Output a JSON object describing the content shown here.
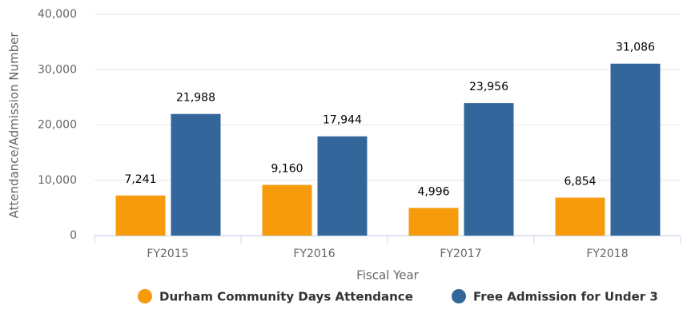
{
  "chart_data": {
    "type": "bar",
    "x_label": "Fiscal Year",
    "y_label": "Attendance/Admission Number",
    "categories": [
      "FY2015",
      "FY2016",
      "FY2017",
      "FY2018"
    ],
    "series": [
      {
        "name": "Durham Community Days Attendance",
        "color": "#f59b0c",
        "values": [
          7241,
          9160,
          4996,
          6854
        ],
        "value_labels": [
          "7,241",
          "9,160",
          "4,996",
          "6,854"
        ]
      },
      {
        "name": "Free Admission for Under 3",
        "color": "#33669a",
        "values": [
          21988,
          17944,
          23956,
          31086
        ],
        "value_labels": [
          "21,988",
          "17,944",
          "23,956",
          "31,086"
        ]
      }
    ],
    "ylim": [
      0,
      40000
    ],
    "yticks": [
      0,
      {
        "value": 10000,
        "label": "10,000"
      },
      {
        "value": 20000,
        "label": "20,000"
      },
      {
        "value": 30000,
        "label": "30,000"
      },
      {
        "value": 40000,
        "label": "40,000"
      }
    ],
    "grid": true,
    "legend": "bottom"
  }
}
